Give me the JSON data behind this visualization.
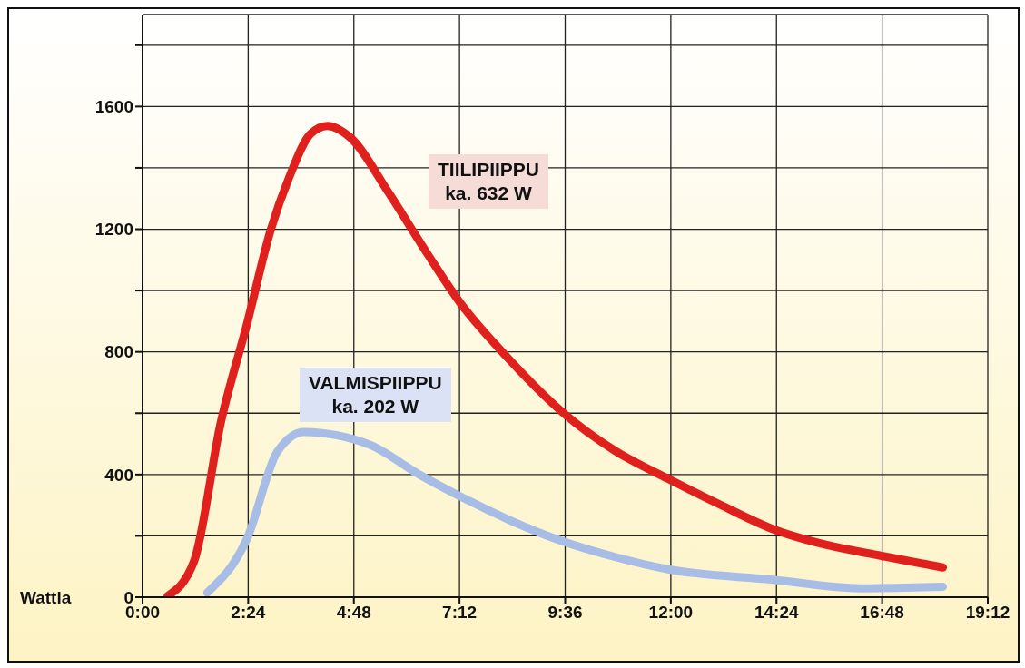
{
  "chart_data": {
    "type": "line",
    "ylabel": "Wattia",
    "xlim": [
      0,
      19.2
    ],
    "xticks": [
      {
        "value": 0,
        "label": "0:00"
      },
      {
        "value": 2.4,
        "label": "2:24"
      },
      {
        "value": 4.8,
        "label": "4:48"
      },
      {
        "value": 7.2,
        "label": "7:12"
      },
      {
        "value": 9.6,
        "label": "9:36"
      },
      {
        "value": 12,
        "label": "12:00"
      },
      {
        "value": 14.4,
        "label": "14:24"
      },
      {
        "value": 16.8,
        "label": "16:48"
      },
      {
        "value": 19.2,
        "label": "19:12"
      }
    ],
    "ylim": [
      0,
      1900
    ],
    "yticks": [
      0,
      {
        "value": 200,
        "label": null
      },
      400,
      {
        "value": 600,
        "label": null
      },
      800,
      {
        "value": 1000,
        "label": null
      },
      1200,
      {
        "value": 1400,
        "label": null
      },
      1600,
      {
        "value": 1800,
        "label": null
      }
    ],
    "grid": true,
    "marker": "none",
    "line_style": "solid",
    "annotations": [
      "ka. 632 W",
      "ka. 202 W"
    ],
    "series": [
      {
        "name": "TIILIPIIPPU",
        "color": "#e0201c",
        "x": [
          0.57,
          1.17,
          1.78,
          2.38,
          2.91,
          3.33,
          3.81,
          4.2,
          4.72,
          5.56,
          6.46,
          7.22,
          8.3,
          9.55,
          10.74,
          11.94,
          13.13,
          14.32,
          15.52,
          16.71,
          18.18
        ],
        "values": [
          4,
          117,
          571,
          895,
          1197,
          1369,
          1510,
          1537,
          1499,
          1326,
          1122,
          959,
          780,
          602,
          477,
          386,
          301,
          222,
          171,
          137,
          97
        ]
      },
      {
        "name": "VALMISPIIPPU",
        "color": "#a8bde6",
        "x": [
          1.47,
          2.38,
          3.06,
          3.67,
          4.42,
          5.18,
          6.31,
          7.45,
          8.36,
          9.55,
          10.74,
          11.94,
          14.32,
          16.31,
          18.18
        ],
        "values": [
          15,
          193,
          474,
          539,
          528,
          496,
          398,
          312,
          250,
          182,
          131,
          91,
          57,
          29,
          34
        ]
      }
    ]
  }
}
